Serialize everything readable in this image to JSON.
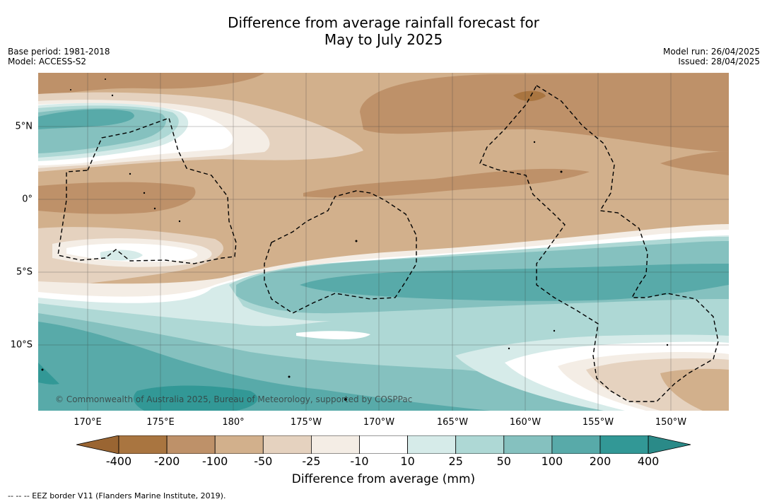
{
  "title_line1": "Difference from average rainfall forecast for",
  "title_line2": "May to July 2025",
  "base_period": "Base period: 1981-2018",
  "model": "Model: ACCESS-S2",
  "model_run": "Model run: 26/04/2025",
  "issued": "Issued: 28/04/2025",
  "copyright": "© Commonwealth of Australia 2025, Bureau of Meteorology, supported by COSPPac",
  "footer": "--  --  -- EEZ border V11 (Flanders Marine Institute, 2019).",
  "lon_labels": [
    "170°E",
    "175°E",
    "180°",
    "175°W",
    "170°W",
    "165°W",
    "160°W",
    "155°W",
    "150°W"
  ],
  "lat_labels": [
    "5°N",
    "0°",
    "5°S",
    "10°S"
  ],
  "colorbar": {
    "title": "Difference from average (mm)",
    "ticks": [
      "-400",
      "-200",
      "-100",
      "-50",
      "-25",
      "-10",
      "10",
      "25",
      "50",
      "100",
      "200",
      "400"
    ],
    "colors": [
      "#a97540",
      "#be9169",
      "#d2b08c",
      "#e5d2bf",
      "#f4ede5",
      "#ffffff",
      "#d6ebe9",
      "#aed8d5",
      "#85c1bf",
      "#58aaa9",
      "#329896"
    ],
    "under_color": "#9a6532",
    "over_color": "#2a8a88"
  },
  "colors": {
    "brown_dark": "#be9169",
    "brown_mid": "#d2b08c",
    "brown_light": "#e5d2bf",
    "cream": "#f4ede5",
    "white": "#ffffff",
    "teal_pale": "#d6ebe9",
    "teal_light": "#aed8d5",
    "teal_mid": "#85c1bf",
    "teal_dark": "#58aaa9",
    "teal_deep": "#329896"
  }
}
